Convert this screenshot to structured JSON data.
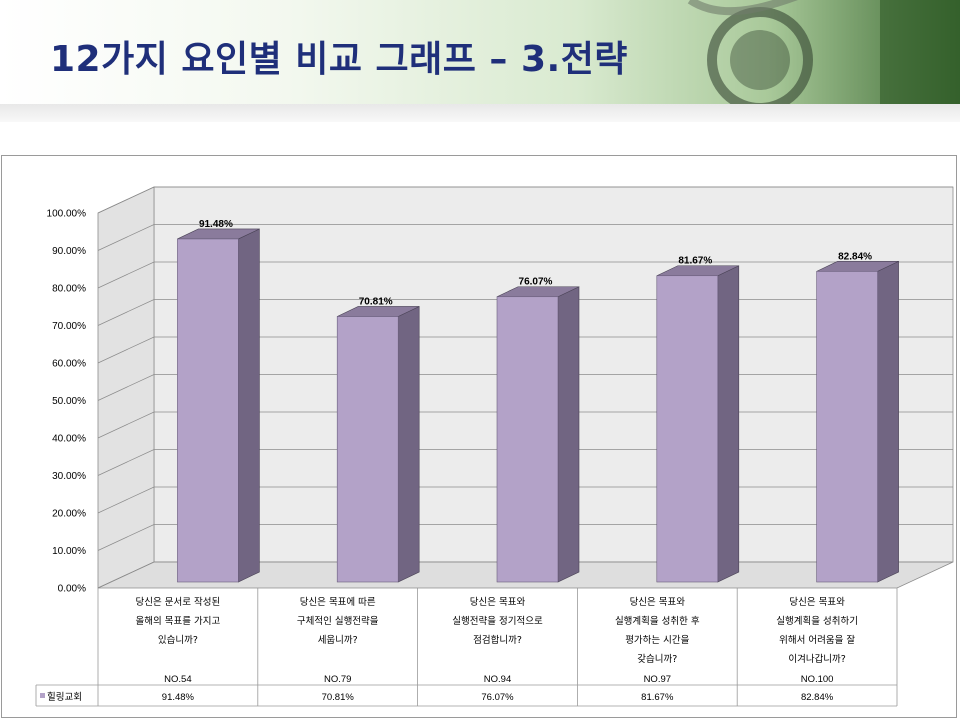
{
  "header": {
    "title": "12가지 요인별 비교 그래프 – 3.전략"
  },
  "chart_data": {
    "type": "bar",
    "y_ticks": [
      "0.00%",
      "10.00%",
      "20.00%",
      "30.00%",
      "40.00%",
      "50.00%",
      "60.00%",
      "70.00%",
      "80.00%",
      "90.00%",
      "100.00%"
    ],
    "ylim": [
      0,
      100
    ],
    "categories": [
      {
        "lines": [
          "당신은 문서로 작성된",
          "올해의 목표를 가지고",
          "있습니까?"
        ],
        "no": "NO.54"
      },
      {
        "lines": [
          "당신은 목표에 따른",
          "구체적인 실행전략을",
          "세웁니까?"
        ],
        "no": "NO.79"
      },
      {
        "lines": [
          "당신은 목표와",
          "실행전략을 정기적으로",
          "점검합니까?"
        ],
        "no": "NO.94"
      },
      {
        "lines": [
          "당신은 목표와",
          "실행계획을 성취한 후",
          "평가하는 시간을",
          "갖습니까?"
        ],
        "no": "NO.97"
      },
      {
        "lines": [
          "당신은 목표와",
          "실행계획을 성취하기",
          "위해서 어려움을 잘",
          "이겨나갑니까?"
        ],
        "no": "NO.100"
      }
    ],
    "series": [
      {
        "name": "힐링교회",
        "values": [
          91.48,
          70.81,
          76.07,
          81.67,
          82.84
        ],
        "labels": [
          "91.48%",
          "70.81%",
          "76.07%",
          "81.67%",
          "82.84%"
        ]
      }
    ],
    "colors": {
      "front": "#b3a2c8",
      "side": "#716582",
      "top": "#8a7b9c",
      "wall": "#ececec",
      "floor": "#dedede"
    }
  }
}
